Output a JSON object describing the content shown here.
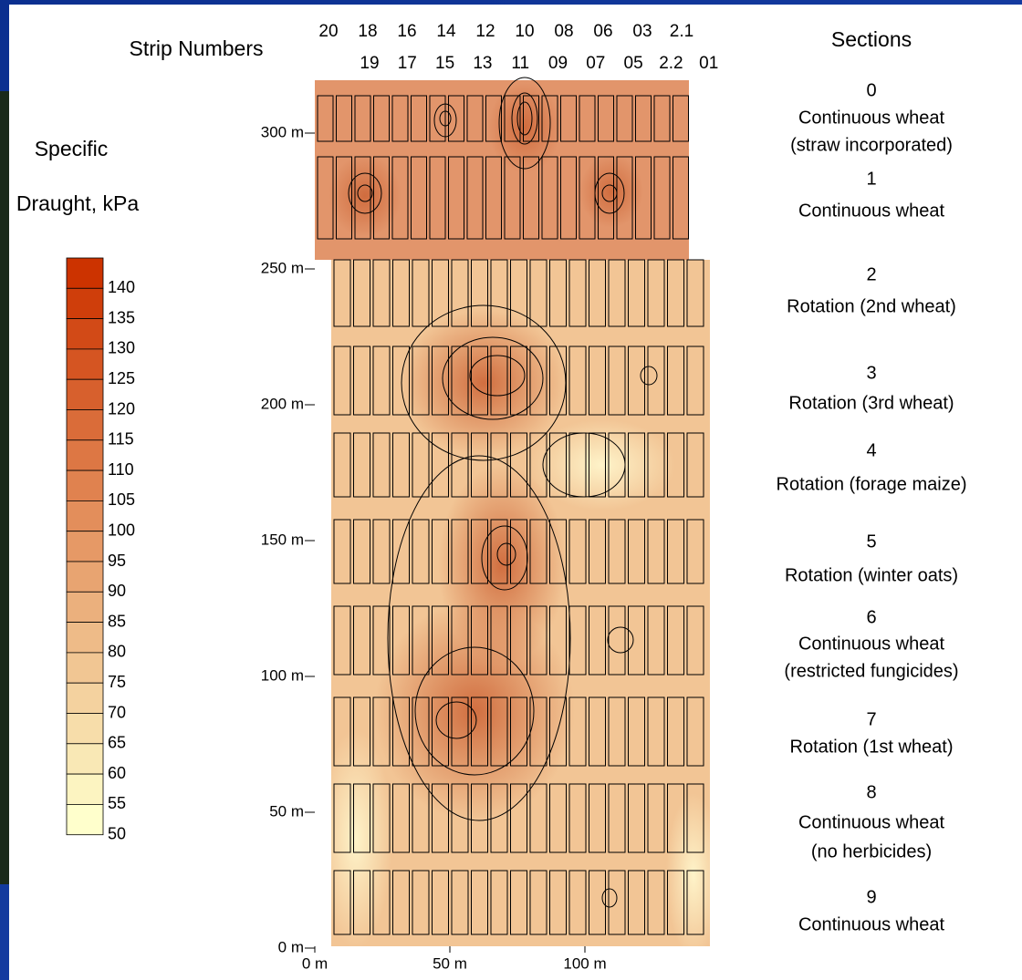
{
  "strip_title": "Strip Numbers",
  "strip_numbers_top": [
    "20",
    "18",
    "16",
    "14",
    "12",
    "10",
    "08",
    "06",
    "03",
    "2.1"
  ],
  "strip_numbers_bottom": [
    "19",
    "17",
    "15",
    "13",
    "11",
    "09",
    "07",
    "05",
    "2.2",
    "01"
  ],
  "legend": {
    "title_lines": [
      "Specific",
      "Draught, kPa"
    ],
    "levels": [
      140,
      135,
      130,
      125,
      120,
      115,
      110,
      105,
      100,
      95,
      90,
      85,
      80,
      75,
      70,
      65,
      60,
      55,
      50
    ],
    "color_high": "#cc3300",
    "color_low": "#ffffcc"
  },
  "y_axis": {
    "ticks": [
      {
        "value": 300,
        "label": "300 m"
      },
      {
        "value": 250,
        "label": "250 m"
      },
      {
        "value": 200,
        "label": "200 m"
      },
      {
        "value": 150,
        "label": "150 m"
      },
      {
        "value": 100,
        "label": "100 m"
      },
      {
        "value": 50,
        "label": "50 m"
      },
      {
        "value": 0,
        "label": "0 m"
      }
    ]
  },
  "x_axis": {
    "ticks": [
      {
        "value": 0,
        "label": "0 m"
      },
      {
        "value": 50,
        "label": "50 m"
      },
      {
        "value": 100,
        "label": "100 m"
      }
    ]
  },
  "sections": {
    "title": "Sections",
    "items": [
      {
        "number": "0",
        "lines": [
          "Continuous wheat",
          "(straw incorporated)"
        ]
      },
      {
        "number": "1",
        "lines": [
          "Continuous wheat"
        ]
      },
      {
        "number": "2",
        "lines": [
          "Rotation (2nd wheat)"
        ]
      },
      {
        "number": "3",
        "lines": [
          "Rotation (3rd wheat)"
        ]
      },
      {
        "number": "4",
        "lines": [
          "Rotation (forage maize)"
        ]
      },
      {
        "number": "5",
        "lines": [
          "Rotation (winter oats)"
        ]
      },
      {
        "number": "6",
        "lines": [
          "Continuous wheat",
          "(restricted fungicides)"
        ]
      },
      {
        "number": "7",
        "lines": [
          "Rotation (1st wheat)"
        ]
      },
      {
        "number": "8",
        "lines": [
          "Continuous wheat",
          "(no herbicides)"
        ]
      },
      {
        "number": "9",
        "lines": [
          "Continuous wheat"
        ]
      }
    ]
  }
}
